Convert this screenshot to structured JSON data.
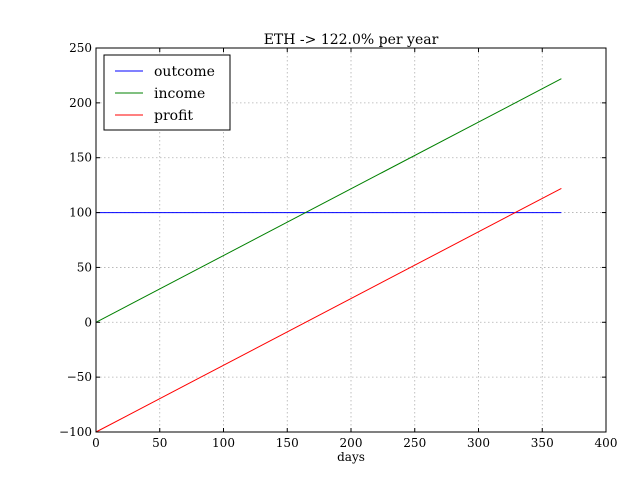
{
  "chart_data": {
    "type": "line",
    "title": "ETH -> 122.0% per year",
    "xlabel": "days",
    "ylabel": "",
    "xlim": [
      0,
      400
    ],
    "ylim": [
      -100,
      250
    ],
    "xticks": [
      0,
      50,
      100,
      150,
      200,
      250,
      300,
      350,
      400
    ],
    "yticks": [
      -100,
      -50,
      0,
      50,
      100,
      150,
      200,
      250
    ],
    "xtick_labels": [
      "0",
      "50",
      "100",
      "150",
      "200",
      "250",
      "300",
      "350",
      "400"
    ],
    "ytick_labels": [
      "−100",
      "−50",
      "0",
      "50",
      "100",
      "150",
      "200",
      "250"
    ],
    "grid": true,
    "legend_position": "top-left",
    "series": [
      {
        "name": "outcome",
        "color": "#0000ff",
        "x": [
          0,
          365
        ],
        "y": [
          100,
          100
        ]
      },
      {
        "name": "income",
        "color": "#008000",
        "x": [
          0,
          365
        ],
        "y": [
          0,
          222
        ]
      },
      {
        "name": "profit",
        "color": "#ff0000",
        "x": [
          0,
          365
        ],
        "y": [
          -100,
          122
        ]
      }
    ]
  }
}
